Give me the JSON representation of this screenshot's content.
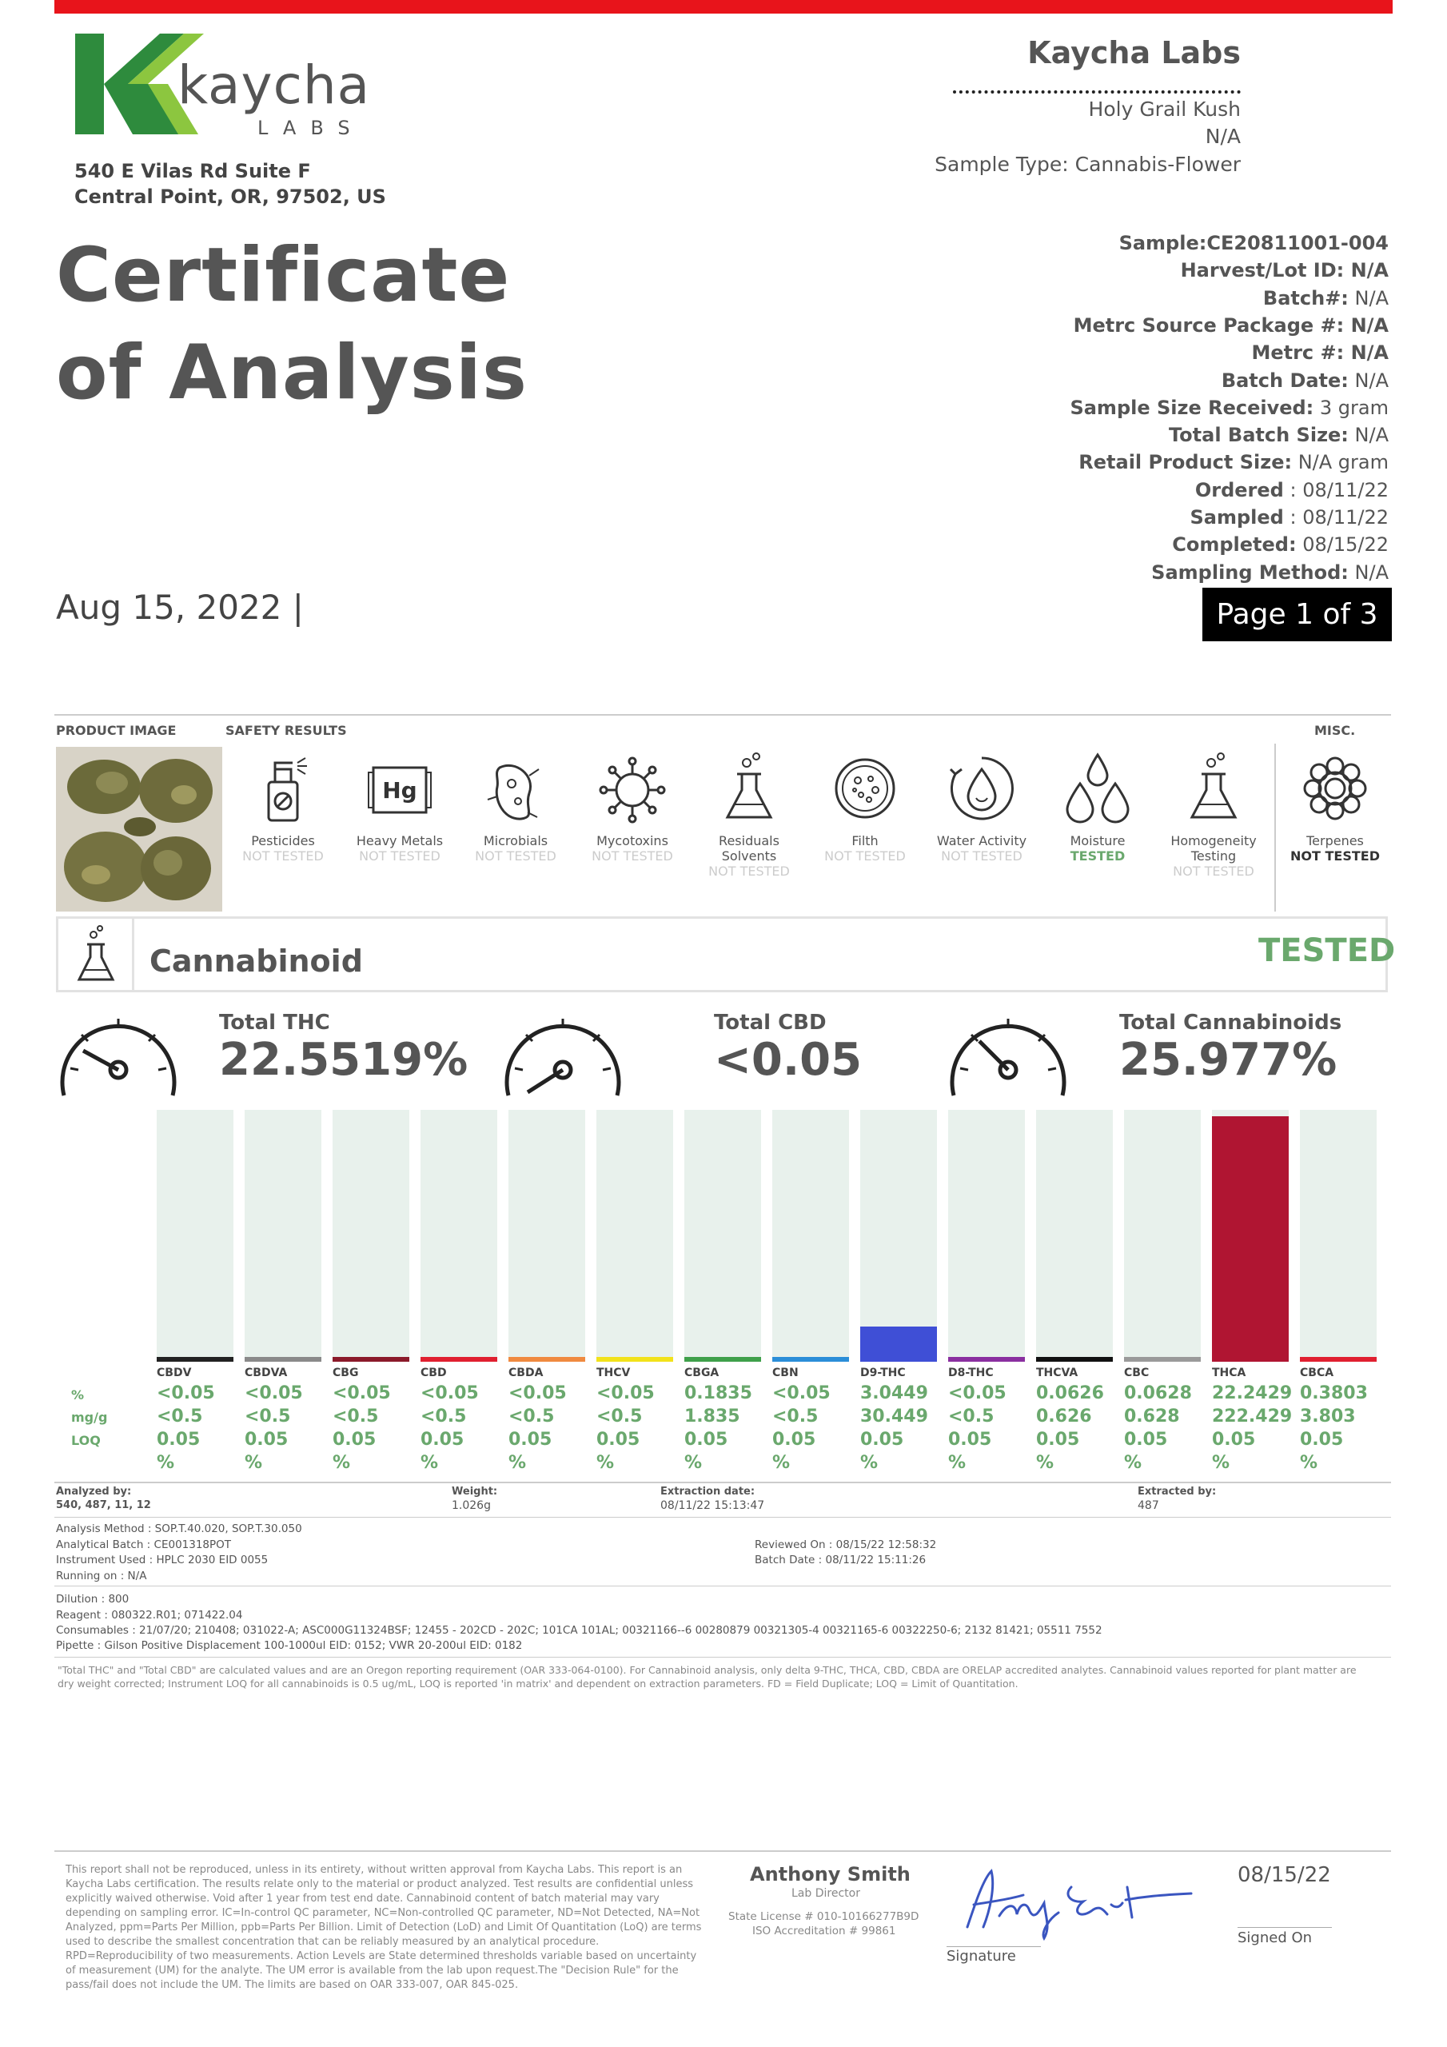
{
  "header": {
    "logo_text": "kaycha",
    "logo_sub": "LABS",
    "address_line1": "540 E Vilas Rd Suite F",
    "address_line2": "Central Point, OR, 97502, US",
    "title_line1": "Certificate",
    "title_line2": "of Analysis",
    "date": "Aug 15, 2022 |",
    "lab_name": "Kaycha Labs",
    "product_name": "Holy Grail Kush",
    "product_sub": "N/A",
    "sample_type": "Sample Type: Cannabis-Flower",
    "page_badge": "Page 1 of 3"
  },
  "sample_info": [
    {
      "label": "Sample:CE20811001-004",
      "value": ""
    },
    {
      "label": "Harvest/Lot ID: N/A",
      "value": ""
    },
    {
      "label": "Batch#:",
      "value": " N/A"
    },
    {
      "label": "Metrc Source Package #: N/A",
      "value": ""
    },
    {
      "label": "Metrc #: N/A",
      "value": ""
    },
    {
      "label": "Batch Date:",
      "value": " N/A"
    },
    {
      "label": "Sample Size Received:",
      "value": " 3 gram"
    },
    {
      "label": "Total Batch Size:",
      "value": " N/A"
    },
    {
      "label": "Retail Product Size:",
      "value": " N/A gram"
    },
    {
      "label": "Ordered",
      "value": " : 08/11/22"
    },
    {
      "label": "Sampled",
      "value": " : 08/11/22"
    },
    {
      "label": "Completed:",
      "value": " 08/15/22"
    },
    {
      "label": "Sampling Method:",
      "value": " N/A"
    }
  ],
  "sections": {
    "product_image": "PRODUCT IMAGE",
    "safety_results": "SAFETY RESULTS",
    "misc": "MISC."
  },
  "safety": [
    {
      "name": "Pesticides",
      "status": "NOT TESTED"
    },
    {
      "name": "Heavy Metals",
      "status": "NOT TESTED"
    },
    {
      "name": "Microbials",
      "status": "NOT TESTED"
    },
    {
      "name": "Mycotoxins",
      "status": "NOT TESTED"
    },
    {
      "name": "Residuals Solvents",
      "status": "NOT TESTED"
    },
    {
      "name": "Filth",
      "status": "NOT TESTED"
    },
    {
      "name": "Water Activity",
      "status": "NOT TESTED"
    },
    {
      "name": "Moisture",
      "status": "TESTED"
    },
    {
      "name": "Homogeneity Testing",
      "status": "NOT TESTED"
    },
    {
      "name": "Terpenes",
      "status": "NOT TESTED"
    }
  ],
  "icons": {
    "pesticides": "spray-bottle-icon",
    "heavy_metals": "hg-icon",
    "microbials": "microbe-icon",
    "mycotoxins": "virus-icon",
    "solvents": "flask-icon",
    "filth": "petri-dish-icon",
    "water_activity": "water-drop-icon",
    "moisture": "drops-icon",
    "homogeneity": "flask-icon",
    "terpenes": "flower-icon"
  },
  "colors": {
    "accent_green": "#6aa86d",
    "brand_red": "#e8141b",
    "thca_red": "#b01532",
    "d9thc_blue": "#3f4fd6"
  },
  "cannabinoid": {
    "title": "Cannabinoid",
    "status": "TESTED",
    "hg_label": "Hg",
    "totals": [
      {
        "label": "Total THC",
        "value": "22.5519%"
      },
      {
        "label": "Total CBD",
        "value": "<0.05"
      },
      {
        "label": "Total Cannabinoids",
        "value": "25.977%"
      }
    ],
    "row_labels": {
      "pct": "%",
      "mgg": "mg/g",
      "loq": "LOQ"
    }
  },
  "chart_data": {
    "type": "bar",
    "categories": [
      "CBDV",
      "CBDVA",
      "CBG",
      "CBD",
      "CBDA",
      "THCV",
      "CBGA",
      "CBN",
      "D9-THC",
      "D8-THC",
      "THCVA",
      "CBC",
      "THCA",
      "CBCA"
    ],
    "series": [
      {
        "name": "%",
        "values": [
          "<0.05",
          "<0.05",
          "<0.05",
          "<0.05",
          "<0.05",
          "<0.05",
          "0.1835",
          "<0.05",
          "3.0449",
          "<0.05",
          "0.0626",
          "0.0628",
          "22.2429",
          "0.3803"
        ]
      },
      {
        "name": "mg/g",
        "values": [
          "<0.5",
          "<0.5",
          "<0.5",
          "<0.5",
          "<0.5",
          "<0.5",
          "1.835",
          "<0.5",
          "30.449",
          "<0.5",
          "0.626",
          "0.628",
          "222.429",
          "3.803"
        ]
      },
      {
        "name": "LOQ",
        "values": [
          "0.05",
          "0.05",
          "0.05",
          "0.05",
          "0.05",
          "0.05",
          "0.05",
          "0.05",
          "0.05",
          "0.05",
          "0.05",
          "0.05",
          "0.05",
          "0.05"
        ]
      }
    ],
    "bar_values": [
      0,
      0,
      0,
      0,
      0,
      0,
      0.1835,
      0,
      3.0449,
      0,
      0.0626,
      0.0628,
      22.2429,
      0.3803
    ],
    "ylim": [
      0,
      22.2429
    ],
    "line_colors": [
      "#222222",
      "#8a8a8a",
      "#8b1a2a",
      "#e02030",
      "#f08a40",
      "#f2e21a",
      "#3fa04a",
      "#2b8ed8",
      "#3f4fd6",
      "#8a2fa0",
      "#111111",
      "#9a9a9a",
      "#b01532",
      "#e02030"
    ],
    "unit_row": "%"
  },
  "details": {
    "analyzed_by_label": "Analyzed by:",
    "analyzed_by": "540, 487, 11, 12",
    "weight_label": "Weight:",
    "weight": "1.026g",
    "extraction_date_label": "Extraction date:",
    "extraction_date": "08/11/22 15:13:47",
    "extracted_by_label": "Extracted by:",
    "extracted_by": "487",
    "analysis_method": "Analysis Method : SOP.T.40.020, SOP.T.30.050",
    "analytical_batch": "Analytical Batch : CE001318POT",
    "instrument_used": "Instrument Used : HPLC 2030 EID 0055",
    "running_on": "Running on : N/A",
    "reviewed_on": "Reviewed On : 08/15/22 12:58:32",
    "batch_date": "Batch Date : 08/11/22 15:11:26",
    "dilution": "Dilution : 800",
    "reagent": "Reagent : 080322.R01; 071422.04",
    "consumables": "Consumables : 21/07/20; 210408; 031022-A; ASC000G11324BSF; 12455 - 202CD - 202C; 101CA 101AL; 00321166--6 00280879 00321305-4 00321165-6 00322250-6; 2132 81421; 05511 7552",
    "pipette": "Pipette : Gilson Positive Displacement 100-1000ul EID: 0152; VWR 20-200ul EID: 0182",
    "note": "\"Total THC\" and \"Total CBD\" are calculated values and are an Oregon reporting requirement (OAR 333-064-0100). For Cannabinoid analysis, only delta 9-THC, THCA, CBD, CBDA are ORELAP accredited analytes. Cannabinoid values reported for plant matter are dry weight corrected; Instrument LOQ for all cannabinoids is 0.5 ug/mL, LOQ is reported 'in matrix' and dependent on extraction parameters. FD = Field Duplicate; LOQ = Limit of Quantitation."
  },
  "footer": {
    "disclaimer": "This report shall not be reproduced, unless in its entirety, without written approval from Kaycha Labs. This report is an Kaycha Labs certification. The results relate only to the material or product analyzed. Test results are confidential unless explicitly waived otherwise. Void after 1 year from test end date. Cannabinoid content of batch material may vary depending on sampling error. IC=In-control QC parameter, NC=Non-controlled QC parameter, ND=Not Detected, NA=Not Analyzed, ppm=Parts Per Million, ppb=Parts Per Billion. Limit of Detection (LoD) and Limit Of Quantitation (LoQ) are terms used to describe the smallest concentration that can be reliably measured by an analytical procedure. RPD=Reproducibility of two measurements. Action Levels are State determined thresholds variable based on uncertainty of measurement (UM) for the analyte. The UM error is available from the lab upon request.The \"Decision Rule\" for the pass/fail does not include the UM. The limits are based on OAR 333-007, OAR 845-025.",
    "signer_name": "Anthony Smith",
    "signer_title": "Lab Director",
    "state_license": "State License # 010-10166277B9D",
    "iso": "ISO Accreditation # 99861",
    "signature_label": "Signature",
    "signed_date": "08/15/22",
    "signed_on_label": "Signed On"
  }
}
